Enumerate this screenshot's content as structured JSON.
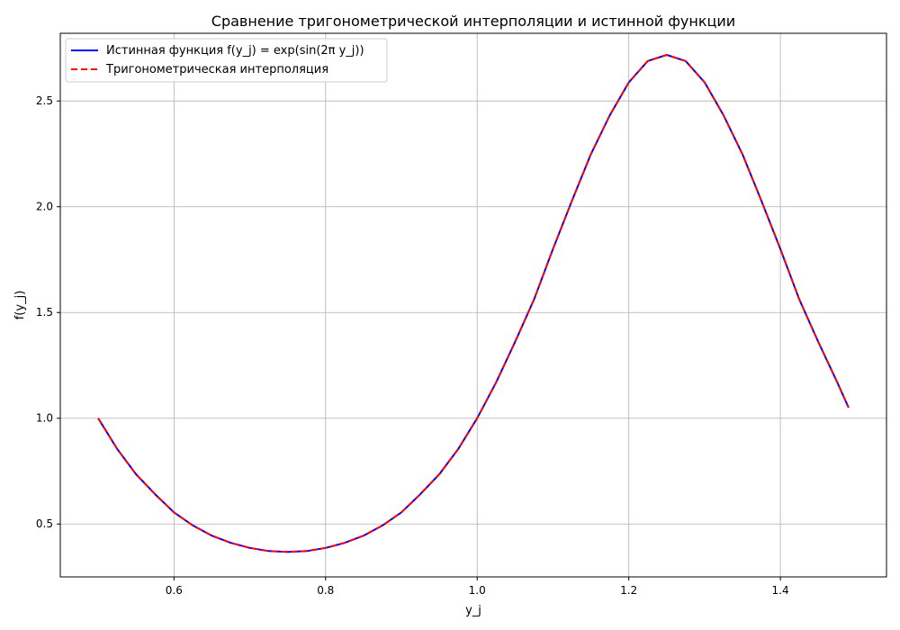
{
  "chart_data": {
    "type": "line",
    "title": "Сравнение тригонометрической интерполяции и истинной функции",
    "xlabel": "y_j",
    "ylabel": "f(y_j)",
    "xlim": [
      0.45,
      1.54
    ],
    "ylim": [
      0.25,
      2.82
    ],
    "x_ticks": [
      0.6,
      0.8,
      1.0,
      1.2,
      1.4
    ],
    "x_tick_labels": [
      "0.6",
      "0.8",
      "1.0",
      "1.2",
      "1.4"
    ],
    "y_ticks": [
      0.5,
      1.0,
      1.5,
      2.0,
      2.5
    ],
    "y_tick_labels": [
      "0.5",
      "1.0",
      "1.5",
      "2.0",
      "2.5"
    ],
    "grid": true,
    "legend_position": "top-left",
    "series": [
      {
        "name": "Истинная функция f(y_j) = exp(sin(2π y_j))",
        "color": "#0000ff",
        "style": "solid",
        "x": [
          0.5,
          0.525,
          0.55,
          0.575,
          0.6,
          0.625,
          0.65,
          0.675,
          0.7,
          0.725,
          0.75,
          0.775,
          0.8,
          0.825,
          0.85,
          0.875,
          0.9,
          0.925,
          0.95,
          0.975,
          1.0,
          1.025,
          1.05,
          1.075,
          1.1,
          1.125,
          1.15,
          1.175,
          1.2,
          1.225,
          1.25,
          1.275,
          1.3,
          1.325,
          1.35,
          1.375,
          1.4,
          1.425,
          1.45,
          1.475,
          1.49
        ],
        "y": [
          1.0,
          0.855,
          0.735,
          0.641,
          0.555,
          0.493,
          0.445,
          0.411,
          0.387,
          0.372,
          0.368,
          0.372,
          0.387,
          0.411,
          0.445,
          0.493,
          0.555,
          0.641,
          0.735,
          0.855,
          1.0,
          1.17,
          1.361,
          1.562,
          1.8,
          2.028,
          2.248,
          2.433,
          2.588,
          2.689,
          2.718,
          2.689,
          2.588,
          2.433,
          2.248,
          2.028,
          1.8,
          1.562,
          1.361,
          1.17,
          1.05
        ]
      },
      {
        "name": "Тригонометрическая интерполяция",
        "color": "#ff0000",
        "style": "dashed",
        "x": [
          0.5,
          0.525,
          0.55,
          0.575,
          0.6,
          0.625,
          0.65,
          0.675,
          0.7,
          0.725,
          0.75,
          0.775,
          0.8,
          0.825,
          0.85,
          0.875,
          0.9,
          0.925,
          0.95,
          0.975,
          1.0,
          1.025,
          1.05,
          1.075,
          1.1,
          1.125,
          1.15,
          1.175,
          1.2,
          1.225,
          1.25,
          1.275,
          1.3,
          1.325,
          1.35,
          1.375,
          1.4,
          1.425,
          1.45,
          1.475,
          1.49
        ],
        "y": [
          1.0,
          0.855,
          0.735,
          0.641,
          0.555,
          0.493,
          0.445,
          0.411,
          0.387,
          0.372,
          0.368,
          0.372,
          0.387,
          0.411,
          0.445,
          0.493,
          0.555,
          0.641,
          0.735,
          0.855,
          1.0,
          1.17,
          1.361,
          1.562,
          1.8,
          2.028,
          2.248,
          2.433,
          2.588,
          2.689,
          2.718,
          2.689,
          2.588,
          2.433,
          2.248,
          2.028,
          1.8,
          1.562,
          1.361,
          1.17,
          1.05
        ]
      }
    ]
  }
}
